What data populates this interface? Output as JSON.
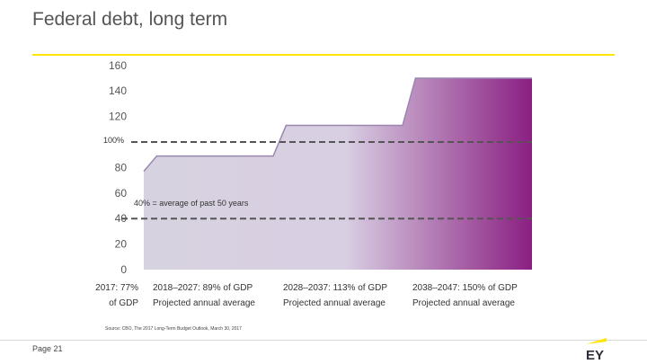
{
  "slide": {
    "title": "Federal debt, long term",
    "source": "Source: CBO, The 2017 Long-Term Budget Outlook, March 30, 2017",
    "page": "Page 21",
    "logo_text": "EY"
  },
  "colors": {
    "accent": "#ffe600",
    "fill_start": "#d7d2e0",
    "fill_end": "#8a1f82",
    "dashed_line": "#555555"
  },
  "chart_data": {
    "type": "area",
    "title": "",
    "xlabel": "",
    "ylabel": "",
    "ylim": [
      0,
      160
    ],
    "yticks": [
      0,
      20,
      40,
      60,
      80,
      100,
      120,
      140,
      160
    ],
    "grid": false,
    "x": [
      2017,
      2018,
      2027,
      2028,
      2037,
      2038,
      2047
    ],
    "values": [
      77,
      89,
      89,
      113,
      113,
      150,
      150
    ],
    "reference_lines": [
      {
        "value": 100,
        "label": "100%",
        "style": "dashed"
      },
      {
        "value": 40,
        "label": "40% = average of past 50 years",
        "style": "dashed"
      }
    ],
    "period_labels": [
      {
        "line1": "2017: 77%",
        "line2": "of GDP"
      },
      {
        "line1": "2018–2027: 89% of GDP",
        "line2": "Projected annual average"
      },
      {
        "line1": "2028–2037: 113% of GDP",
        "line2": "Projected annual average"
      },
      {
        "line1": "2038–2047: 150% of GDP",
        "line2": "Projected annual average"
      }
    ]
  }
}
